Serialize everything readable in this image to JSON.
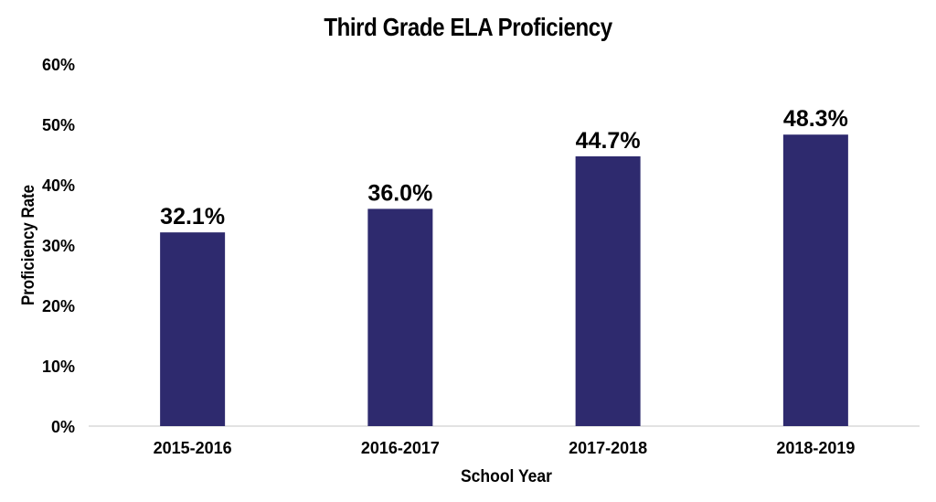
{
  "chart_data": {
    "type": "bar",
    "title": "Third Grade ELA Proficiency",
    "xlabel": "School Year",
    "ylabel": "Proficiency Rate",
    "categories": [
      "2015-2016",
      "2016-2017",
      "2017-2018",
      "2018-2019"
    ],
    "values": [
      32.1,
      36.0,
      44.7,
      48.3
    ],
    "data_labels": [
      "32.1%",
      "36.0%",
      "44.7%",
      "48.3%"
    ],
    "ylim": [
      0,
      60
    ],
    "yticks": [
      "0%",
      "10%",
      "20%",
      "30%",
      "40%",
      "50%",
      "60%"
    ],
    "bar_color": "#2e2a6e",
    "grid": false,
    "legend": "none"
  }
}
